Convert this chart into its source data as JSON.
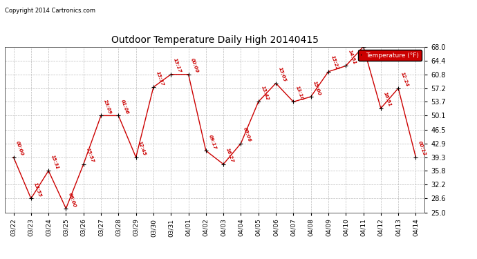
{
  "title": "Outdoor Temperature Daily High 20140415",
  "copyright": "Copyright 2014 Cartronics.com",
  "legend_label": "Temperature (°F)",
  "x_labels": [
    "03/22",
    "03/23",
    "03/24",
    "03/25",
    "03/26",
    "03/27",
    "03/28",
    "03/29",
    "03/30",
    "03/31",
    "04/01",
    "04/02",
    "04/03",
    "04/04",
    "04/05",
    "04/06",
    "04/07",
    "04/08",
    "04/09",
    "04/10",
    "04/11",
    "04/12",
    "04/13",
    "04/14"
  ],
  "y_values": [
    39.3,
    28.6,
    35.8,
    26.0,
    37.5,
    50.1,
    50.1,
    39.3,
    57.5,
    60.8,
    60.8,
    41.0,
    37.5,
    42.9,
    53.7,
    58.5,
    53.7,
    55.0,
    61.5,
    63.0,
    68.0,
    52.0,
    57.2,
    39.3
  ],
  "point_labels": [
    "00:00",
    "13:55",
    "15:31",
    "06:00",
    "15:57",
    "23:09",
    "01:06",
    "12:45",
    "15:37",
    "13:17",
    "00:00",
    "09:17",
    "16:27",
    "09:06",
    "13:42",
    "15:05",
    "13:10",
    "15:00",
    "15:22",
    "14:51",
    "",
    "16:51",
    "12:24",
    "00:13"
  ],
  "ylim": [
    25.0,
    68.0
  ],
  "yticks": [
    25.0,
    28.6,
    32.2,
    35.8,
    39.3,
    42.9,
    46.5,
    50.1,
    53.7,
    57.2,
    60.8,
    64.4,
    68.0
  ],
  "line_color": "#cc0000",
  "marker_color": "#000000",
  "bg_color": "#ffffff",
  "grid_color": "#aaaaaa",
  "label_color": "#cc0000",
  "legend_bg": "#cc0000",
  "legend_text_color": "#ffffff"
}
